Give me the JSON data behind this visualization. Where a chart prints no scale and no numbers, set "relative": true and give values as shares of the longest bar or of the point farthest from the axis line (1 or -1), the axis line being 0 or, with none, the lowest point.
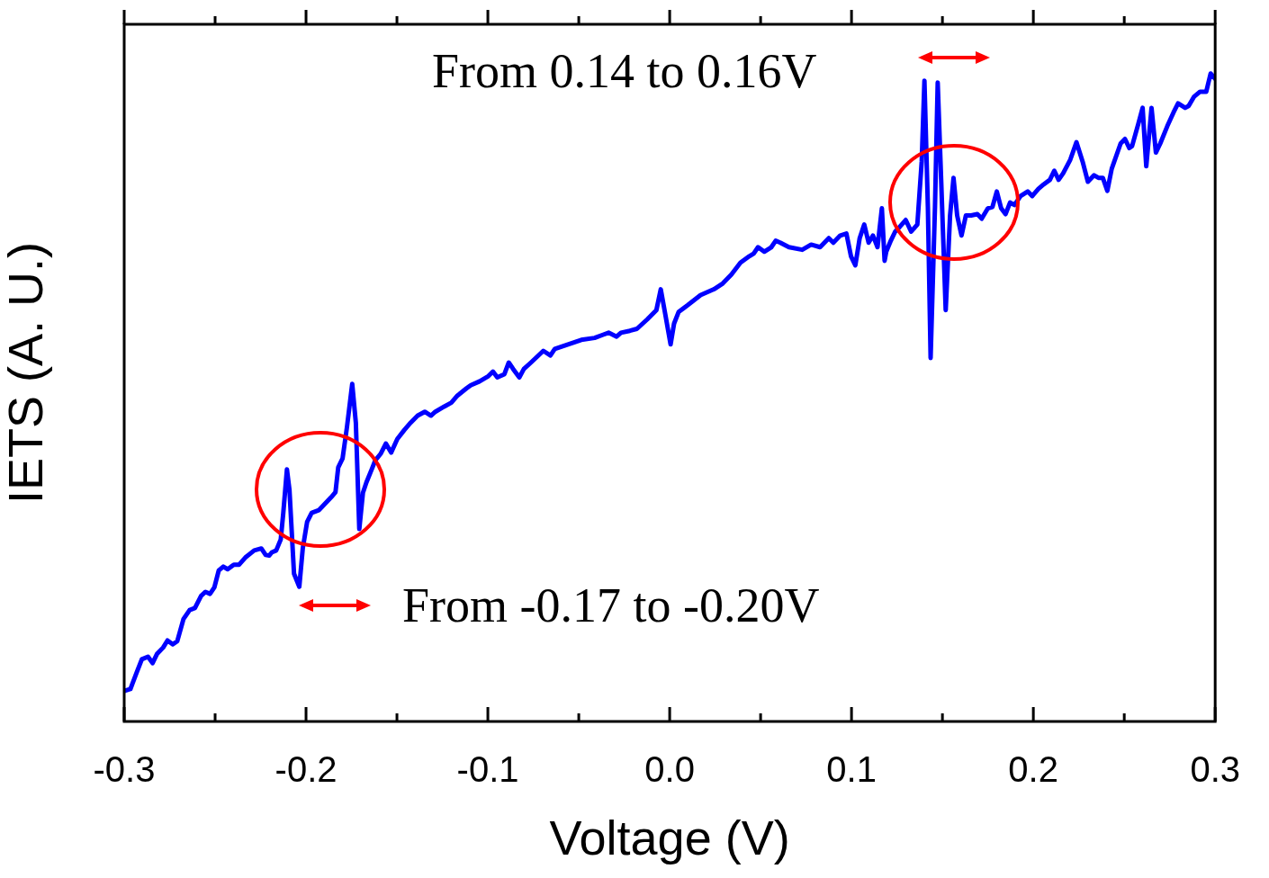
{
  "chart_data": {
    "type": "line",
    "xlabel": "Voltage (V)",
    "ylabel": "IETS (A. U.)",
    "relative": true,
    "color": "#0000ff",
    "grid": false,
    "legend": false,
    "annotations": [
      "From 0.14 to 0.16V",
      "From -0.17 to -0.20V"
    ],
    "xlim": [
      -0.3,
      0.3
    ],
    "xticks": [
      -0.3,
      {
        "value": -0.25,
        "label": null
      },
      -0.2,
      {
        "value": -0.15,
        "label": null
      },
      -0.1,
      {
        "value": -0.05,
        "label": null
      },
      {
        "value": 0,
        "label": "0.0"
      },
      {
        "value": 0.05,
        "label": null
      },
      0.1,
      {
        "value": 0.15,
        "label": null
      },
      0.2,
      {
        "value": 0.25,
        "label": null
      },
      0.3
    ],
    "x": [
      -0.3,
      -0.2966,
      -0.2932,
      -0.2903,
      -0.2869,
      -0.2844,
      -0.282,
      -0.2786,
      -0.2762,
      -0.2733,
      -0.2708,
      -0.2674,
      -0.264,
      -0.2611,
      -0.2577,
      -0.2553,
      -0.2528,
      -0.2504,
      -0.248,
      -0.2455,
      -0.2431,
      -0.2397,
      -0.2368,
      -0.2334,
      -0.2285,
      -0.2246,
      -0.2222,
      -0.2203,
      -0.2188,
      -0.2164,
      -0.2139,
      -0.2125,
      -0.2105,
      -0.2091,
      -0.2066,
      -0.2037,
      -0.2018,
      -0.1994,
      -0.1969,
      -0.193,
      -0.1896,
      -0.1862,
      -0.1838,
      -0.1823,
      -0.1799,
      -0.1775,
      -0.1746,
      -0.1726,
      -0.1707,
      -0.1687,
      -0.1668,
      -0.1639,
      -0.1619,
      -0.159,
      -0.1561,
      -0.1532,
      -0.1498,
      -0.1459,
      -0.1425,
      -0.1386,
      -0.1347,
      -0.1313,
      -0.1289,
      -0.124,
      -0.1201,
      -0.1167,
      -0.1118,
      -0.1094,
      -0.1045,
      -0.0997,
      -0.0972,
      -0.0948,
      -0.0909,
      -0.0885,
      -0.0861,
      -0.0827,
      -0.0802,
      -0.0763,
      -0.0729,
      -0.0695,
      -0.0656,
      -0.0632,
      -0.0559,
      -0.0486,
      -0.0413,
      -0.0365,
      -0.0336,
      -0.0292,
      -0.0268,
      -0.0219,
      -0.018,
      -0.0122,
      -0.0073,
      -0.0049,
      -0.0024,
      0.0005,
      0.0024,
      0.0049,
      0.0097,
      0.017,
      0.0243,
      0.0292,
      0.034,
      0.0389,
      0.0438,
      0.0462,
      0.0486,
      0.052,
      0.0559,
      0.0583,
      0.0608,
      0.0656,
      0.0729,
      0.0778,
      0.0827,
      0.0875,
      0.09,
      0.0938,
      0.0972,
      0.0997,
      0.1021,
      0.1045,
      0.107,
      0.1094,
      0.1118,
      0.1143,
      0.1167,
      0.1182,
      0.1191,
      0.1216,
      0.124,
      0.1264,
      0.1298,
      0.1328,
      0.1362,
      0.1386,
      0.1401,
      0.142,
      0.1435,
      0.1459,
      0.1474,
      0.1493,
      0.1518,
      0.1542,
      0.1561,
      0.1581,
      0.1605,
      0.1629,
      0.1658,
      0.1692,
      0.1716,
      0.175,
      0.1775,
      0.1799,
      0.1823,
      0.1847,
      0.1872,
      0.1896,
      0.193,
      0.1969,
      0.1994,
      0.2028,
      0.2057,
      0.2091,
      0.2115,
      0.2139,
      0.2164,
      0.2203,
      0.2237,
      0.2271,
      0.23,
      0.2334,
      0.2358,
      0.2382,
      0.2407,
      0.2431,
      0.248,
      0.2504,
      0.2528,
      0.2543,
      0.2577,
      0.2601,
      0.2621,
      0.265,
      0.2674,
      0.2698,
      0.2737,
      0.2771,
      0.2796,
      0.2835,
      0.2854,
      0.2883,
      0.2917,
      0.2951,
      0.2975,
      0.3
    ],
    "values": [
      0.047,
      0.05,
      0.075,
      0.096,
      0.1,
      0.09,
      0.104,
      0.114,
      0.125,
      0.119,
      0.124,
      0.158,
      0.172,
      0.175,
      0.194,
      0.2,
      0.197,
      0.207,
      0.233,
      0.239,
      0.235,
      0.242,
      0.242,
      0.253,
      0.264,
      0.267,
      0.257,
      0.256,
      0.261,
      0.264,
      0.281,
      0.322,
      0.389,
      0.357,
      0.228,
      0.208,
      0.267,
      0.308,
      0.322,
      0.326,
      0.336,
      0.346,
      0.354,
      0.392,
      0.406,
      0.454,
      0.521,
      0.461,
      0.297,
      0.353,
      0.369,
      0.389,
      0.403,
      0.413,
      0.429,
      0.415,
      0.436,
      0.45,
      0.461,
      0.472,
      0.478,
      0.472,
      0.478,
      0.486,
      0.492,
      0.503,
      0.514,
      0.519,
      0.525,
      0.533,
      0.54,
      0.531,
      0.536,
      0.554,
      0.544,
      0.531,
      0.544,
      0.554,
      0.563,
      0.572,
      0.565,
      0.575,
      0.582,
      0.589,
      0.592,
      0.597,
      0.6,
      0.594,
      0.6,
      0.603,
      0.606,
      0.621,
      0.635,
      0.667,
      0.628,
      0.582,
      0.614,
      0.632,
      0.642,
      0.658,
      0.667,
      0.676,
      0.69,
      0.708,
      0.718,
      0.722,
      0.732,
      0.725,
      0.732,
      0.742,
      0.739,
      0.732,
      0.728,
      0.736,
      0.732,
      0.746,
      0.739,
      0.75,
      0.753,
      0.718,
      0.704,
      0.746,
      0.767,
      0.739,
      0.75,
      0.732,
      0.792,
      0.711,
      0.725,
      0.742,
      0.756,
      0.763,
      0.774,
      0.756,
      0.767,
      0.864,
      0.989,
      0.794,
      0.561,
      0.794,
      0.986,
      0.836,
      0.635,
      0.781,
      0.839,
      0.781,
      0.75,
      0.781,
      0.781,
      0.783,
      0.776,
      0.792,
      0.794,
      0.818,
      0.792,
      0.783,
      0.801,
      0.797,
      0.811,
      0.818,
      0.811,
      0.822,
      0.829,
      0.836,
      0.85,
      0.836,
      0.846,
      0.867,
      0.894,
      0.864,
      0.833,
      0.843,
      0.839,
      0.839,
      0.819,
      0.853,
      0.892,
      0.899,
      0.885,
      0.888,
      0.922,
      0.947,
      0.857,
      0.947,
      0.878,
      0.892,
      0.919,
      0.94,
      0.954,
      0.947,
      0.95,
      0.964,
      0.972,
      0.972,
      1.0,
      0.992
    ]
  }
}
